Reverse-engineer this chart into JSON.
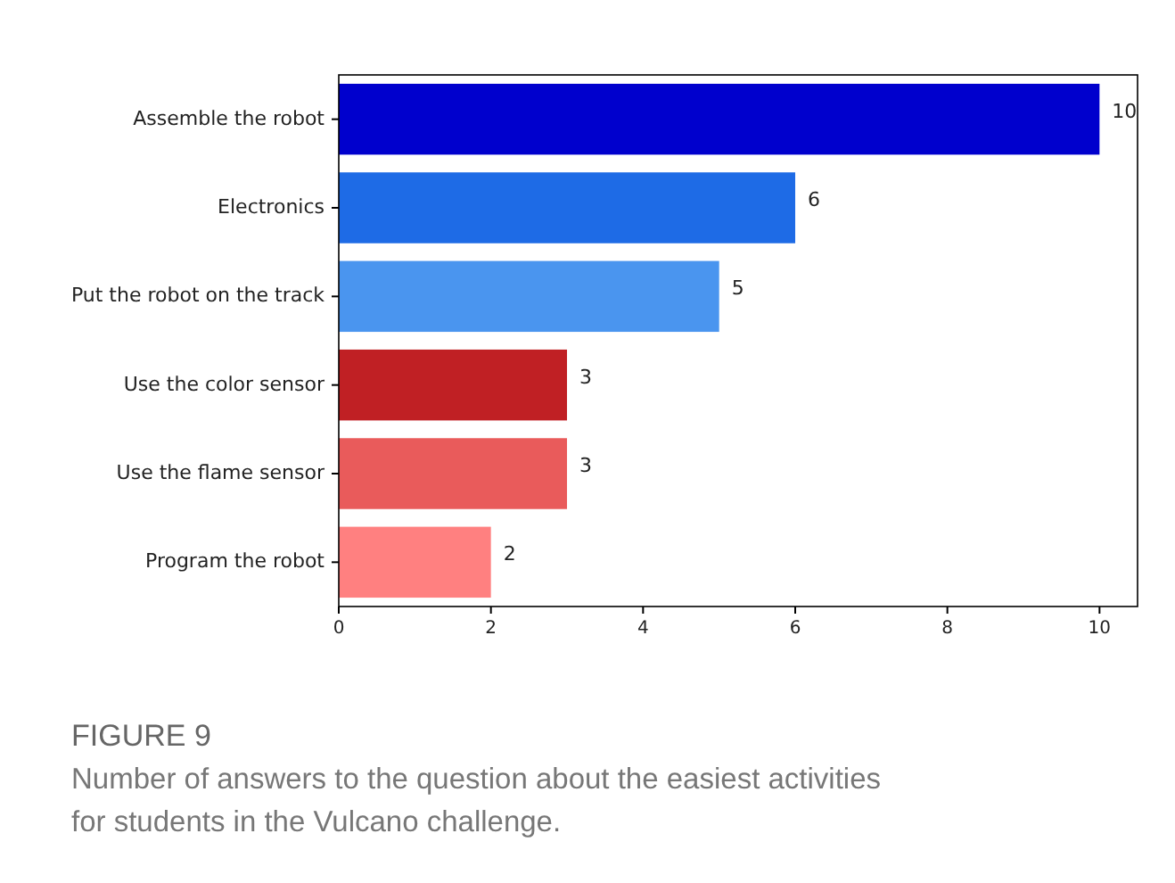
{
  "chart_data": {
    "type": "bar",
    "orientation": "horizontal",
    "title": "FIGURE 9",
    "subtitle": "Number of answers to the question about the easiest activities for students in the Vulcano challenge.",
    "categories": [
      "Assemble the robot",
      "Electronics",
      "Put the robot on the track",
      "Use the color sensor",
      "Use the flame sensor",
      "Program the robot"
    ],
    "values": [
      10,
      6,
      5,
      3,
      3,
      2
    ],
    "colors": [
      "#0000cd",
      "#1e6be6",
      "#4a95ef",
      "#c02024",
      "#e95b5b",
      "#ff8080"
    ],
    "xlim": [
      0,
      10.5
    ],
    "xticks": [
      0,
      2,
      4,
      6,
      8,
      10
    ],
    "data_labels": true,
    "grid": false
  }
}
